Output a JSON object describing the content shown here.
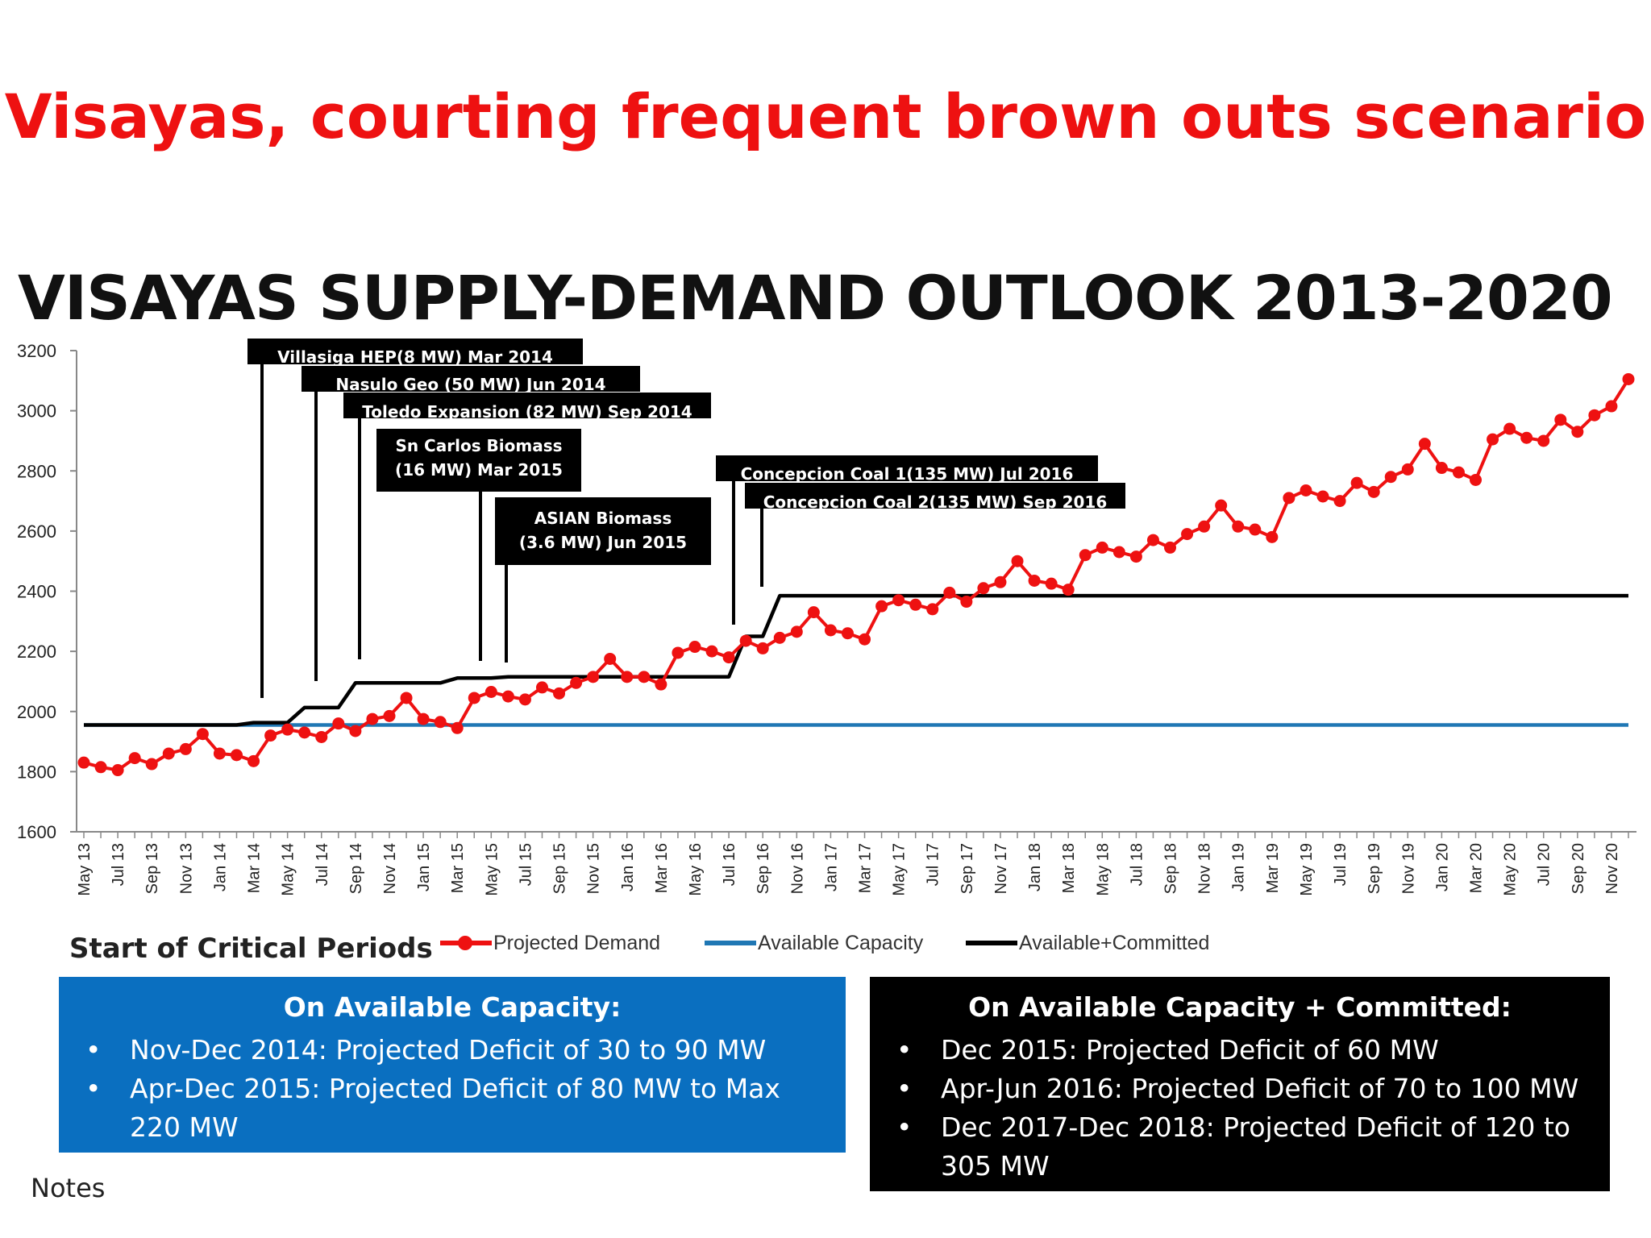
{
  "slide_title": "Visayas, courting frequent brown outs scenario",
  "chart_data": {
    "type": "line",
    "title": "VISAYAS SUPPLY-DEMAND OUTLOOK 2013-2020",
    "xlabel": "",
    "ylabel": "",
    "ylim": [
      1600,
      3200
    ],
    "yticks": [
      1600,
      1800,
      2000,
      2200,
      2400,
      2600,
      2800,
      3000,
      3200
    ],
    "month_start": "May 13",
    "month_end": "Dec 20",
    "xtick_labels": [
      "May 13",
      "Jul 13",
      "Sep 13",
      "Nov 13",
      "Jan 14",
      "Mar 14",
      "May 14",
      "Jul 14",
      "Sep 14",
      "Nov 14",
      "Jan 15",
      "Mar 15",
      "May 15",
      "Jul 15",
      "Sep 15",
      "Nov 15",
      "Jan 16",
      "Mar 16",
      "May 16",
      "Jul 16",
      "Sep 16",
      "Nov 16",
      "Jan 17",
      "Mar 17",
      "May 17",
      "Jul 17",
      "Sep 17",
      "Nov 17",
      "Jan 18",
      "Mar 18",
      "May 18",
      "Jul 18",
      "Sep 18",
      "Nov 18",
      "Jan 19",
      "Mar 19",
      "May 19",
      "Jul 19",
      "Sep 19",
      "Nov 19",
      "Jan 20",
      "Mar 20",
      "May 20",
      "Jul 20",
      "Sep 20",
      "Nov 20"
    ],
    "series": [
      {
        "name": "Projected Demand",
        "color": "#ee1111",
        "marker": "circle",
        "values": [
          1830,
          1815,
          1805,
          1845,
          1825,
          1860,
          1875,
          1925,
          1860,
          1855,
          1835,
          1920,
          1940,
          1930,
          1915,
          1960,
          1935,
          1975,
          1985,
          2045,
          1975,
          1965,
          1945,
          2045,
          2065,
          2050,
          2040,
          2080,
          2060,
          2095,
          2115,
          2175,
          2115,
          2115,
          2090,
          2195,
          2215,
          2200,
          2180,
          2235,
          2210,
          2245,
          2265,
          2330,
          2270,
          2260,
          2240,
          2350,
          2370,
          2355,
          2340,
          2395,
          2365,
          2410,
          2430,
          2500,
          2435,
          2425,
          2405,
          2520,
          2545,
          2530,
          2515,
          2570,
          2545,
          2590,
          2615,
          2685,
          2615,
          2605,
          2580,
          2710,
          2735,
          2715,
          2700,
          2760,
          2730,
          2780,
          2805,
          2890,
          2810,
          2795,
          2770,
          2905,
          2940,
          2910,
          2900,
          2970,
          2930,
          2985,
          3015,
          3105
        ]
      },
      {
        "name": "Available Capacity",
        "color": "#1f77b4",
        "values": [
          1955,
          1955,
          1955,
          1955,
          1955,
          1955,
          1955,
          1955,
          1955,
          1955,
          1955,
          1955,
          1955,
          1955,
          1955,
          1955,
          1955,
          1955,
          1955,
          1955,
          1955,
          1955,
          1955,
          1955,
          1955,
          1955,
          1955,
          1955,
          1955,
          1955,
          1955,
          1955,
          1955,
          1955,
          1955,
          1955,
          1955,
          1955,
          1955,
          1955,
          1955,
          1955,
          1955,
          1955,
          1955,
          1955,
          1955,
          1955,
          1955,
          1955,
          1955,
          1955,
          1955,
          1955,
          1955,
          1955,
          1955,
          1955,
          1955,
          1955,
          1955,
          1955,
          1955,
          1955,
          1955,
          1955,
          1955,
          1955,
          1955,
          1955,
          1955,
          1955,
          1955,
          1955,
          1955,
          1955,
          1955,
          1955,
          1955,
          1955,
          1955,
          1955,
          1955,
          1955,
          1955,
          1955,
          1955,
          1955,
          1955,
          1955,
          1955,
          1955
        ]
      },
      {
        "name": "Available+Committed",
        "color": "#000000",
        "values": [
          1955,
          1955,
          1955,
          1955,
          1955,
          1955,
          1955,
          1955,
          1955,
          1955,
          1963,
          1963,
          1963,
          2013,
          2013,
          2013,
          2095,
          2095,
          2095,
          2095,
          2095,
          2095,
          2111,
          2111,
          2111,
          2115,
          2115,
          2115,
          2115,
          2115,
          2115,
          2115,
          2115,
          2115,
          2115,
          2115,
          2115,
          2115,
          2115,
          2250,
          2250,
          2385,
          2385,
          2385,
          2385,
          2385,
          2385,
          2385,
          2385,
          2385,
          2385,
          2385,
          2385,
          2385,
          2385,
          2385,
          2385,
          2385,
          2385,
          2385,
          2385,
          2385,
          2385,
          2385,
          2385,
          2385,
          2385,
          2385,
          2385,
          2385,
          2385,
          2385,
          2385,
          2385,
          2385,
          2385,
          2385,
          2385,
          2385,
          2385,
          2385,
          2385,
          2385,
          2385,
          2385,
          2385,
          2385,
          2385,
          2385,
          2385,
          2385,
          2385
        ]
      }
    ],
    "annotations": [
      {
        "lines": [
          "Villasiga HEP(8 MW) Mar 2014"
        ],
        "month_index": 10
      },
      {
        "lines": [
          "Nasulo Geo (50 MW) Jun 2014"
        ],
        "month_index": 13
      },
      {
        "lines": [
          "Toledo Expansion (82 MW) Sep 2014"
        ],
        "month_index": 16
      },
      {
        "lines": [
          "Sn Carlos Biomass",
          "(16 MW) Mar 2015"
        ],
        "month_index": 22
      },
      {
        "lines": [
          "ASIAN Biomass",
          "(3.6 MW) Jun 2015"
        ],
        "month_index": 25
      },
      {
        "lines": [
          "Concepcion Coal 1(135 MW) Jul 2016"
        ],
        "month_index": 38
      },
      {
        "lines": [
          "Concepcion Coal 2(135 MW) Sep 2016"
        ],
        "month_index": 40
      }
    ],
    "legend_position": "bottom",
    "grid": false
  },
  "critical_periods_label": "Start of Critical Periods",
  "available_box": {
    "heading": "On Available Capacity:",
    "items": [
      "Nov-Dec 2014: Projected Deficit of 30 to 90 MW",
      "Apr-Dec 2015: Projected Deficit of 80 MW to Max 220 MW"
    ],
    "color": "#0a6fc0"
  },
  "committed_box": {
    "heading": "On Available Capacity + Committed:",
    "items": [
      "Dec 2015: Projected Deficit of 60 MW",
      "Apr-Jun 2016: Projected Deficit of 70 to 100 MW",
      "Dec 2017-Dec 2018: Projected Deficit of  120 to 305 MW"
    ],
    "color": "#000000"
  },
  "bullet_glyph": "•",
  "notes": "Notes"
}
